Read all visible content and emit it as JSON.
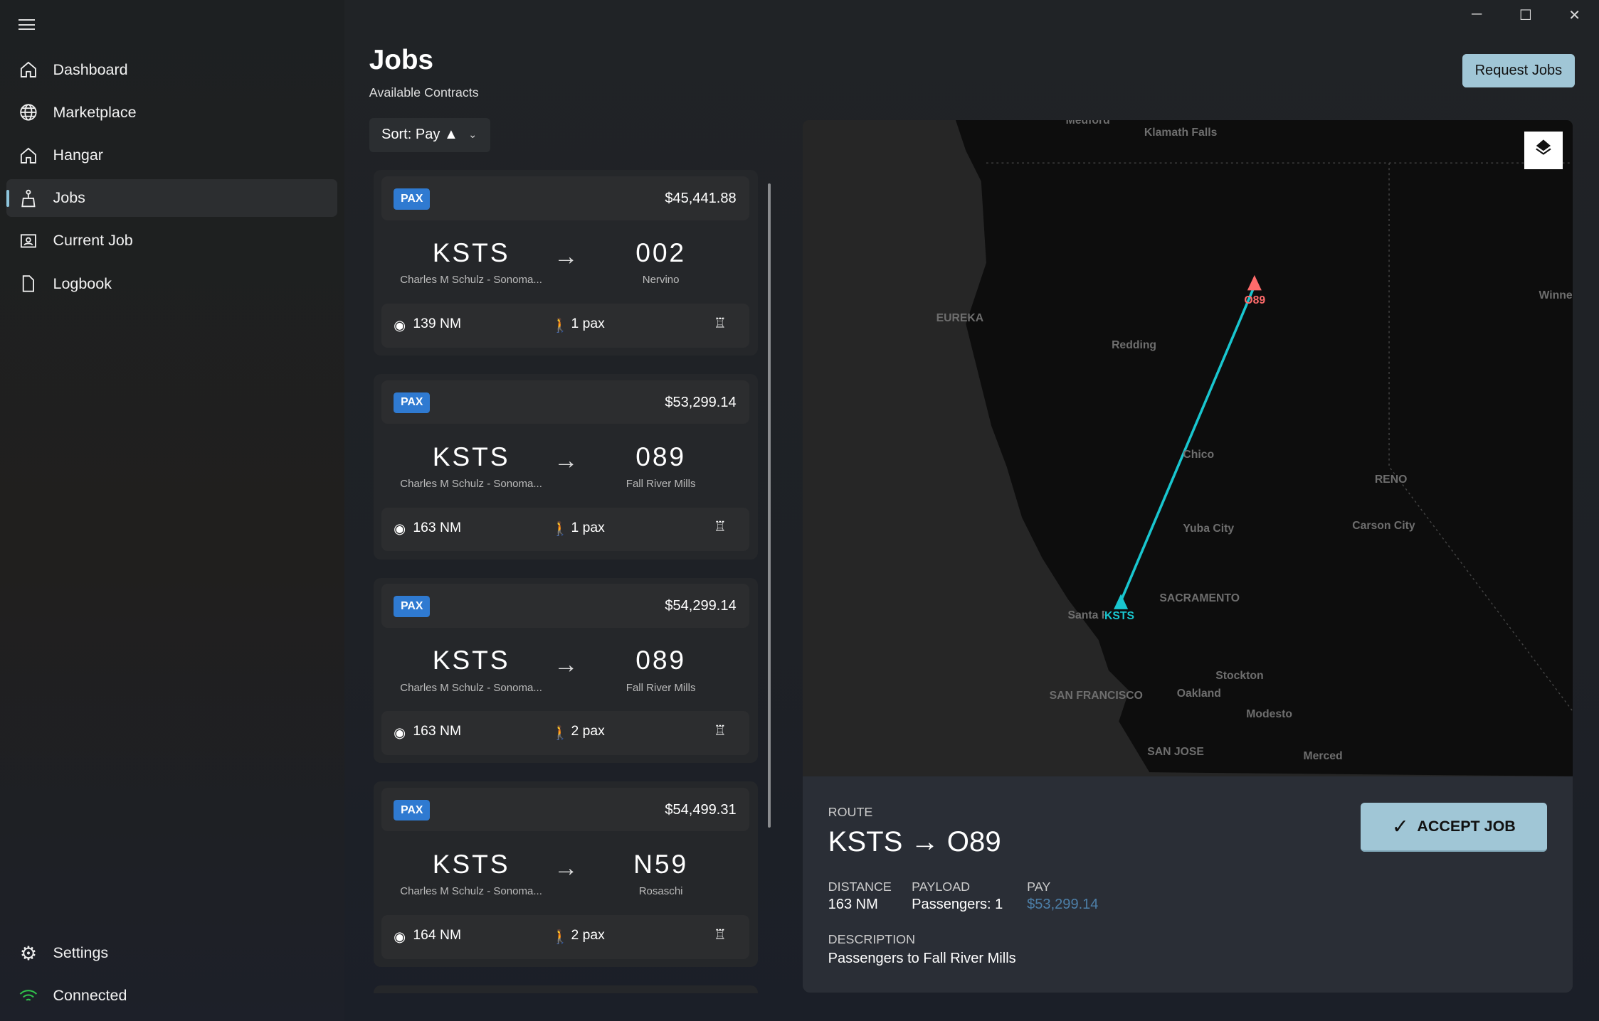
{
  "window": {
    "minimize": "─",
    "maximize": "☐",
    "close": "✕"
  },
  "sidebar": {
    "items": [
      {
        "label": "Dashboard",
        "icon": "home-icon"
      },
      {
        "label": "Marketplace",
        "icon": "globe-icon"
      },
      {
        "label": "Hangar",
        "icon": "hangar-icon"
      },
      {
        "label": "Jobs",
        "icon": "jobs-icon",
        "active": true
      },
      {
        "label": "Current Job",
        "icon": "badge-icon"
      },
      {
        "label": "Logbook",
        "icon": "document-icon"
      }
    ],
    "settings": "Settings",
    "status": "Connected",
    "status_color": "#2fbf4a"
  },
  "header": {
    "title": "Jobs",
    "subtitle": "Available Contracts",
    "request_button": "Request Jobs"
  },
  "sort": {
    "label": "Sort: Pay ▲"
  },
  "jobs": [
    {
      "type": "PAX",
      "pay": "$45,441.88",
      "from": "KSTS",
      "from_name": "Charles M Schulz - Sonoma...",
      "to": "002",
      "to_name": "Nervino",
      "distance": "139 NM",
      "payload": "1 pax"
    },
    {
      "type": "PAX",
      "pay": "$53,299.14",
      "from": "KSTS",
      "from_name": "Charles M Schulz - Sonoma...",
      "to": "089",
      "to_name": "Fall River Mills",
      "distance": "163 NM",
      "payload": "1 pax"
    },
    {
      "type": "PAX",
      "pay": "$54,299.14",
      "from": "KSTS",
      "from_name": "Charles M Schulz - Sonoma...",
      "to": "089",
      "to_name": "Fall River Mills",
      "distance": "163 NM",
      "payload": "2 pax"
    },
    {
      "type": "PAX",
      "pay": "$54,499.31",
      "from": "KSTS",
      "from_name": "Charles M Schulz - Sonoma...",
      "to": "N59",
      "to_name": "Rosaschi",
      "distance": "164 NM",
      "payload": "2 pax"
    }
  ],
  "map": {
    "origin": "KSTS",
    "destination": "O89",
    "route_color": "#19c6cf",
    "dest_color": "#ff6b6b",
    "cities": [
      "Medford",
      "Klamath Falls",
      "EUREKA",
      "Redding",
      "Winne",
      "Chico",
      "RENO",
      "Yuba City",
      "Carson City",
      "Santa R",
      "SACRAMENTO",
      "Stockton",
      "SAN FRANCISCO",
      "Oakland",
      "Modesto",
      "SAN JOSE",
      "Merced"
    ]
  },
  "detail": {
    "route_label": "ROUTE",
    "route": "KSTS → O89",
    "distance_label": "DISTANCE",
    "distance": "163 NM",
    "payload_label": "PAYLOAD",
    "payload": "Passengers: 1",
    "pay_label": "PAY",
    "pay": "$53,299.14",
    "pay_color": "#4d7fa8",
    "description_label": "DESCRIPTION",
    "description": "Passengers to Fall River Mills",
    "accept": "ACCEPT JOB"
  }
}
